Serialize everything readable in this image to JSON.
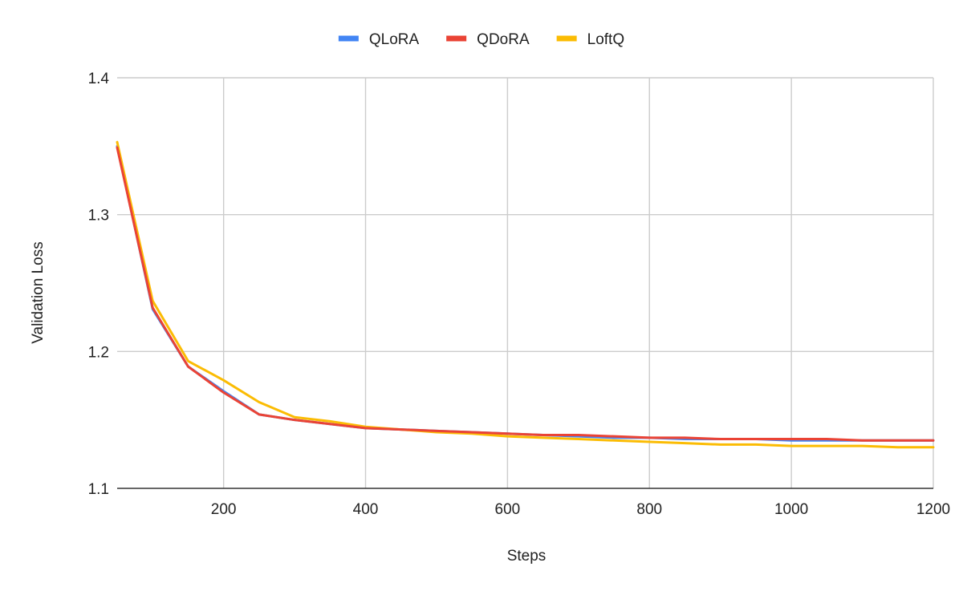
{
  "chart_data": {
    "type": "line",
    "title": "",
    "xlabel": "Steps",
    "ylabel": "Validation Loss",
    "xlim": [
      50,
      1200
    ],
    "ylim": [
      1.1,
      1.4
    ],
    "x_ticks": [
      200,
      400,
      600,
      800,
      1000,
      1200
    ],
    "y_ticks": [
      1.1,
      1.2,
      1.3,
      1.4
    ],
    "x_tick_labels": [
      "200",
      "400",
      "600",
      "800",
      "1000",
      "1200"
    ],
    "y_tick_labels": [
      "1.1",
      "1.2",
      "1.3",
      "1.4"
    ],
    "grid": true,
    "legend_position": "top",
    "x": [
      50,
      100,
      150,
      200,
      250,
      300,
      350,
      400,
      450,
      500,
      550,
      600,
      650,
      700,
      750,
      800,
      850,
      900,
      950,
      1000,
      1050,
      1100,
      1150,
      1200
    ],
    "series": [
      {
        "name": "QLoRA",
        "color": "#4285f4",
        "values": [
          1.35,
          1.231,
          1.189,
          1.171,
          1.154,
          1.15,
          1.147,
          1.144,
          1.143,
          1.142,
          1.141,
          1.14,
          1.139,
          1.138,
          1.137,
          1.137,
          1.136,
          1.136,
          1.136,
          1.135,
          1.135,
          1.135,
          1.135,
          1.135
        ]
      },
      {
        "name": "QDoRA",
        "color": "#ea4335",
        "values": [
          1.349,
          1.232,
          1.189,
          1.17,
          1.154,
          1.15,
          1.147,
          1.144,
          1.143,
          1.142,
          1.141,
          1.14,
          1.139,
          1.139,
          1.138,
          1.137,
          1.137,
          1.136,
          1.136,
          1.136,
          1.136,
          1.135,
          1.135,
          1.135
        ]
      },
      {
        "name": "LoftQ",
        "color": "#fbbc04",
        "values": [
          1.353,
          1.237,
          1.193,
          1.179,
          1.163,
          1.152,
          1.149,
          1.145,
          1.143,
          1.141,
          1.14,
          1.138,
          1.137,
          1.136,
          1.135,
          1.134,
          1.133,
          1.132,
          1.132,
          1.131,
          1.131,
          1.131,
          1.13,
          1.13
        ]
      }
    ]
  }
}
